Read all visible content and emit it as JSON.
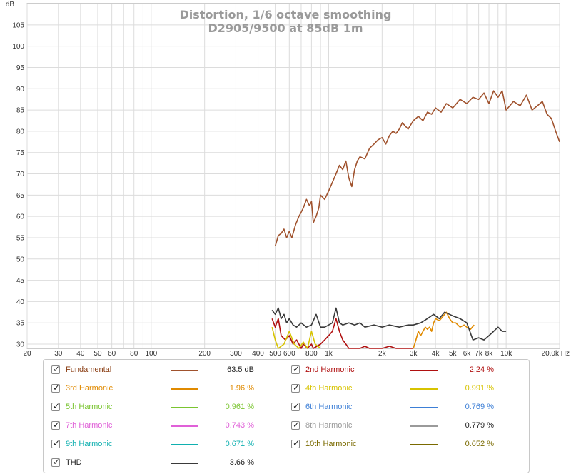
{
  "chart_data": {
    "type": "line",
    "title": "Distortion, 1/6 octave smoothing",
    "subtitle": "D2905/9500 at 85dB 1m",
    "ylabel": "dB",
    "xlabel": "",
    "xscale": "log",
    "xlim": [
      20,
      20000
    ],
    "ylim": [
      29,
      110
    ],
    "y_ticks": [
      30,
      35,
      40,
      45,
      50,
      55,
      60,
      65,
      70,
      75,
      80,
      85,
      90,
      95,
      100,
      105
    ],
    "x_ticks": [
      {
        "v": 20,
        "label": "20"
      },
      {
        "v": 30,
        "label": "30"
      },
      {
        "v": 40,
        "label": "40"
      },
      {
        "v": 50,
        "label": "50"
      },
      {
        "v": 60,
        "label": "60"
      },
      {
        "v": 80,
        "label": "80"
      },
      {
        "v": 100,
        "label": "100"
      },
      {
        "v": 200,
        "label": "200"
      },
      {
        "v": 300,
        "label": "300"
      },
      {
        "v": 400,
        "label": "400"
      },
      {
        "v": 500,
        "label": "500"
      },
      {
        "v": 600,
        "label": "600"
      },
      {
        "v": 800,
        "label": "800"
      },
      {
        "v": 1000,
        "label": "1k"
      },
      {
        "v": 2000,
        "label": "2k"
      },
      {
        "v": 3000,
        "label": "3k"
      },
      {
        "v": 4000,
        "label": "4k"
      },
      {
        "v": 5000,
        "label": "5k"
      },
      {
        "v": 6000,
        "label": "6k"
      },
      {
        "v": 7000,
        "label": "7k"
      },
      {
        "v": 8000,
        "label": "8k"
      },
      {
        "v": 10000,
        "label": "10k"
      },
      {
        "v": 20000,
        "label": "20.0k Hz"
      }
    ],
    "grid": true,
    "legend_position": "bottom",
    "series": [
      {
        "name": "Fundamental",
        "color": "#a0522d",
        "value": "63.5 dB",
        "x": [
          500,
          520,
          540,
          560,
          580,
          600,
          620,
          650,
          680,
          700,
          720,
          750,
          780,
          800,
          820,
          850,
          880,
          900,
          950,
          1000,
          1050,
          1100,
          1150,
          1200,
          1250,
          1300,
          1350,
          1400,
          1450,
          1500,
          1600,
          1700,
          1800,
          1900,
          2000,
          2100,
          2200,
          2300,
          2400,
          2500,
          2600,
          2800,
          3000,
          3200,
          3400,
          3600,
          3800,
          4000,
          4300,
          4600,
          5000,
          5500,
          6000,
          6500,
          7000,
          7500,
          8000,
          8500,
          9000,
          9500,
          10000,
          11000,
          12000,
          13000,
          14000,
          15000,
          16000,
          17000,
          18000,
          19000,
          20000
        ],
        "y": [
          53,
          55.5,
          56,
          57,
          55,
          56.5,
          55,
          58,
          60,
          61,
          62,
          64,
          62.5,
          63.5,
          58.5,
          60,
          62,
          65,
          64,
          66,
          68,
          70,
          72,
          71,
          73,
          69,
          67,
          71,
          73,
          74,
          73.5,
          76,
          77,
          78,
          78.5,
          77,
          79,
          80,
          79.5,
          80.5,
          82,
          80.5,
          82.5,
          83.5,
          82.5,
          84.5,
          84,
          85.5,
          84.5,
          86.5,
          85.5,
          87.5,
          86.5,
          88,
          87.5,
          89,
          86.5,
          89.5,
          88,
          89.5,
          85,
          87,
          86,
          88.5,
          85,
          86,
          87,
          84,
          83,
          80,
          77.5
        ]
      },
      {
        "name": "2nd Harmonic",
        "color": "#b01010",
        "value": "2.24 %",
        "x": [
          480,
          500,
          520,
          540,
          570,
          600,
          630,
          660,
          700,
          720,
          760,
          800,
          820,
          900,
          950,
          1000,
          1050,
          1100,
          1150,
          1200,
          1250,
          1300,
          1400,
          1500,
          1600,
          1700,
          1800,
          2000,
          2200,
          2400,
          2600,
          2800,
          3000
        ],
        "y": [
          36,
          34,
          36,
          32,
          31,
          32,
          30,
          31,
          29,
          30,
          29,
          30,
          29,
          30,
          31,
          32,
          33,
          36,
          33,
          31,
          30,
          29,
          29,
          29,
          29.5,
          29,
          29,
          29,
          29.5,
          29,
          29,
          29,
          29
        ]
      },
      {
        "name": "3rd Harmonic",
        "color": "#e08a00",
        "value": "1.96 %",
        "x": [
          3000,
          3100,
          3200,
          3300,
          3400,
          3500,
          3600,
          3700,
          3800,
          3900,
          4000,
          4200,
          4400,
          4600,
          4800,
          5000,
          5200,
          5500,
          5800,
          6000,
          6300,
          6600
        ],
        "y": [
          29,
          31,
          33,
          32,
          33,
          34,
          33.5,
          34,
          33,
          35,
          36,
          35.5,
          36.5,
          37.5,
          36,
          35,
          35,
          34,
          34.5,
          34,
          33.5,
          34.5
        ]
      },
      {
        "name": "4th Harmonic",
        "color": "#d7c300",
        "value": "0.991 %",
        "x": [
          480,
          500,
          520,
          560,
          600,
          640,
          680,
          720,
          760,
          800,
          840,
          900
        ],
        "y": [
          34,
          31,
          29,
          30,
          33,
          30,
          29,
          30.5,
          29,
          33,
          30,
          29
        ]
      },
      {
        "name": "5th Harmonic",
        "color": "#7ac530",
        "value": "0.961 %",
        "x": [],
        "y": []
      },
      {
        "name": "6th Harmonic",
        "color": "#3d7fd6",
        "value": "0.769 %",
        "x": [],
        "y": []
      },
      {
        "name": "7th Harmonic",
        "color": "#e060d8",
        "value": "0.743 %",
        "x": [],
        "y": []
      },
      {
        "name": "8th Harmonic",
        "color": "#9a9a9a",
        "value": "0.779 %",
        "x": [],
        "y": []
      },
      {
        "name": "9th Harmonic",
        "color": "#10b0b0",
        "value": "0.671 %",
        "x": [],
        "y": []
      },
      {
        "name": "10th Harmonic",
        "color": "#7a6a00",
        "value": "0.652 %",
        "x": [],
        "y": []
      },
      {
        "name": "THD",
        "color": "#3a3a3a",
        "value": "3.66 %",
        "x": [
          480,
          500,
          520,
          540,
          560,
          580,
          600,
          630,
          660,
          700,
          750,
          800,
          850,
          900,
          950,
          1000,
          1050,
          1100,
          1150,
          1200,
          1300,
          1400,
          1500,
          1600,
          1800,
          2000,
          2200,
          2500,
          2800,
          3000,
          3300,
          3600,
          3900,
          4200,
          4500,
          4800,
          5100,
          5500,
          6000,
          6500,
          7000,
          7500,
          8000,
          8500,
          9000,
          9500,
          10000
        ],
        "y": [
          38,
          37,
          38.5,
          36,
          37,
          35,
          36,
          34.5,
          34,
          35,
          34,
          34.5,
          37,
          34,
          34,
          34.5,
          35,
          38.5,
          35,
          34.5,
          35,
          34.5,
          35,
          34,
          34.5,
          34,
          34.5,
          34,
          34.5,
          34.5,
          35,
          36,
          37,
          36,
          37.5,
          37,
          36.5,
          36,
          35,
          31,
          31.5,
          31,
          32,
          33,
          34,
          33,
          33
        ]
      }
    ]
  }
}
